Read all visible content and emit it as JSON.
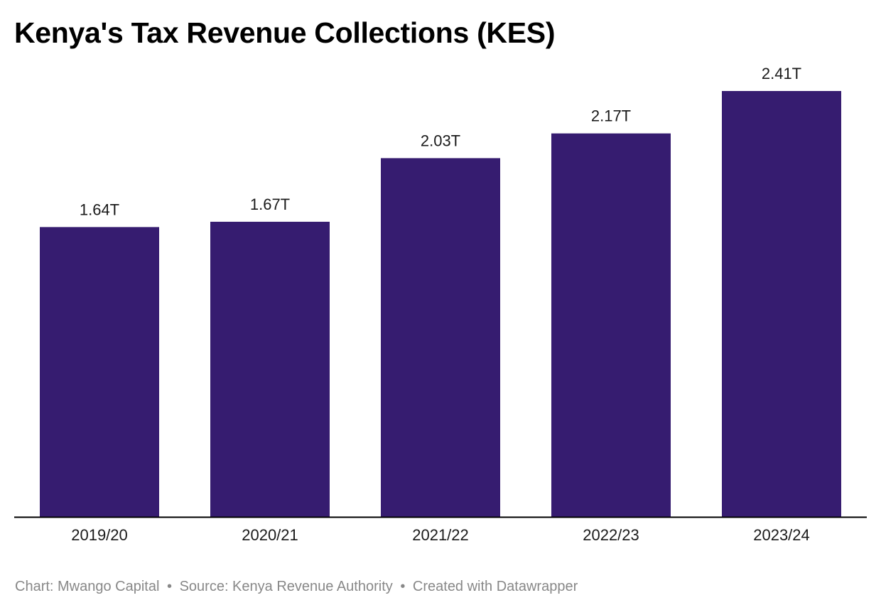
{
  "chart_data": {
    "type": "bar",
    "title": "Kenya's Tax Revenue Collections (KES)",
    "categories": [
      "2019/20",
      "2020/21",
      "2021/22",
      "2022/23",
      "2023/24"
    ],
    "values": [
      1.64,
      1.67,
      2.03,
      2.17,
      2.41
    ],
    "value_labels": [
      "1.64T",
      "1.67T",
      "2.03T",
      "2.17T",
      "2.41T"
    ],
    "xlabel": "",
    "ylabel": "",
    "ylim": [
      0,
      2.41
    ],
    "grid": false,
    "bar_color": "#361c70",
    "axis_color": "#000000"
  },
  "footer": {
    "chart_credit": "Chart: Mwango Capital",
    "separator": "•",
    "source": "Source: Kenya Revenue Authority",
    "tool": "Created with Datawrapper"
  }
}
